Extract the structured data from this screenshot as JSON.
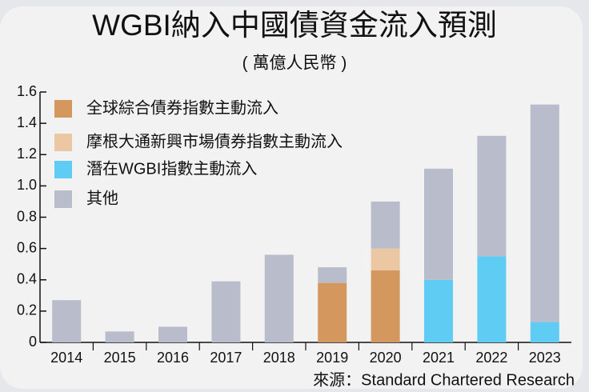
{
  "chart_data": {
    "type": "stacked_bar",
    "title": "WGBI納入中國債資金流入預測",
    "subtitle": "( 萬億人民幣 )",
    "source": "來源：Standard Chartered Research",
    "categories": [
      "2014",
      "2015",
      "2016",
      "2017",
      "2018",
      "2019",
      "2020",
      "2021",
      "2022",
      "2023"
    ],
    "series": [
      {
        "name": "全球綜合債券指數主動流入",
        "color": "#d4975e",
        "values": [
          null,
          null,
          null,
          null,
          null,
          0.38,
          0.46,
          null,
          null,
          null
        ]
      },
      {
        "name": "摩根大通新興市場債券指數主動流入",
        "color": "#ebc7a3",
        "values": [
          null,
          null,
          null,
          null,
          null,
          null,
          0.14,
          null,
          null,
          null
        ]
      },
      {
        "name": "潛在WGBI指數主動流入",
        "color": "#5fcdf3",
        "values": [
          null,
          null,
          null,
          null,
          null,
          null,
          null,
          0.4,
          0.55,
          0.13
        ]
      },
      {
        "name": "其他",
        "color": "#b8bccb",
        "values": [
          0.27,
          0.07,
          0.1,
          0.39,
          0.56,
          0.1,
          0.3,
          0.71,
          0.77,
          1.39
        ]
      }
    ],
    "ylim": [
      0,
      1.6
    ],
    "yticks": [
      0,
      0.2,
      0.4,
      0.6,
      0.8,
      {
        "value": 1,
        "label": "1.0"
      },
      1.2,
      1.4,
      1.6
    ]
  }
}
